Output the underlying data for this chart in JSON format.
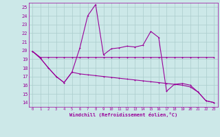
{
  "xlabel": "Windchill (Refroidissement éolien,°C)",
  "xlim": [
    -0.5,
    23.5
  ],
  "ylim": [
    13.5,
    25.5
  ],
  "yticks": [
    14,
    15,
    16,
    17,
    18,
    19,
    20,
    21,
    22,
    23,
    24,
    25
  ],
  "xticks": [
    0,
    1,
    2,
    3,
    4,
    5,
    6,
    7,
    8,
    9,
    10,
    11,
    12,
    13,
    14,
    15,
    16,
    17,
    18,
    19,
    20,
    21,
    22,
    23
  ],
  "bg_color": "#cce8e8",
  "grid_color": "#aacccc",
  "line_color": "#990099",
  "line1_x": [
    0,
    1,
    2,
    3,
    4,
    5,
    6,
    7,
    8,
    9,
    10,
    11,
    12,
    13,
    14,
    15,
    16,
    17,
    18,
    19,
    20,
    21,
    22,
    23
  ],
  "line1_y": [
    19.9,
    19.1,
    18.0,
    17.0,
    16.3,
    17.5,
    20.3,
    24.0,
    25.3,
    19.5,
    20.2,
    20.3,
    20.5,
    20.4,
    20.6,
    22.2,
    21.5,
    15.3,
    16.1,
    16.2,
    16.0,
    15.2,
    14.2,
    14.0
  ],
  "line2_x": [
    0,
    1,
    2,
    3,
    4,
    5,
    6,
    7,
    8,
    9,
    10,
    11,
    12,
    13,
    14,
    15,
    16,
    17,
    18,
    19,
    20,
    21,
    22,
    23
  ],
  "line2_y": [
    19.9,
    19.2,
    19.2,
    19.2,
    19.2,
    19.2,
    19.2,
    19.2,
    19.2,
    19.2,
    19.2,
    19.2,
    19.2,
    19.2,
    19.2,
    19.2,
    19.2,
    19.2,
    19.2,
    19.2,
    19.2,
    19.2,
    19.2,
    19.2
  ],
  "line3_x": [
    0,
    1,
    2,
    3,
    4,
    5,
    6,
    7,
    8,
    9,
    10,
    11,
    12,
    13,
    14,
    15,
    16,
    17,
    18,
    19,
    20,
    21,
    22,
    23
  ],
  "line3_y": [
    19.9,
    19.1,
    18.0,
    17.0,
    16.3,
    17.5,
    17.3,
    17.2,
    17.1,
    17.0,
    16.9,
    16.8,
    16.7,
    16.6,
    16.5,
    16.4,
    16.3,
    16.2,
    16.1,
    16.0,
    15.8,
    15.2,
    14.2,
    14.0
  ]
}
